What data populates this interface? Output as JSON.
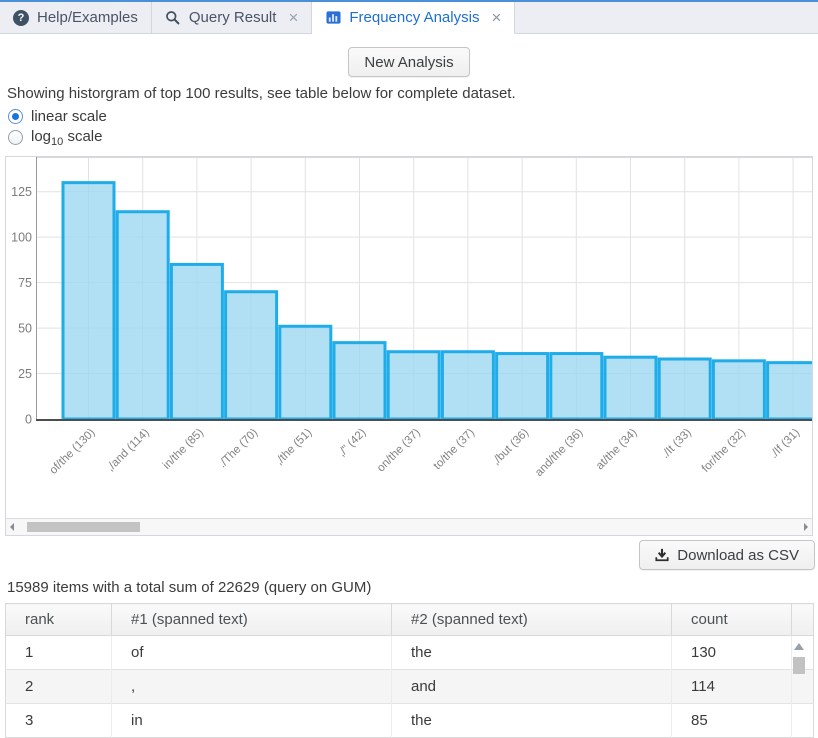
{
  "tabs": [
    {
      "label": "Help/Examples",
      "icon": "help-circle",
      "closable": false,
      "active": false
    },
    {
      "label": "Query Result",
      "icon": "magnifier",
      "closable": true,
      "active": false
    },
    {
      "label": "Frequency Analysis",
      "icon": "bar-chart",
      "closable": true,
      "active": true
    }
  ],
  "toolbar": {
    "new_analysis_label": "New Analysis"
  },
  "description": "Showing historgram of top 100 results, see table below for complete dataset.",
  "scales": {
    "linear_label": "linear scale",
    "log_pre": "log",
    "log_sub": "10",
    "log_post": " scale",
    "selected": "linear"
  },
  "chart_data": {
    "type": "bar",
    "categories": [
      "of/the",
      ",/and",
      "in/the",
      "./The",
      ",/the",
      ",/\"",
      "on/the",
      "to/the",
      ",/but",
      "and/the",
      "at/the",
      "./It",
      "for/the",
      "./If"
    ],
    "values": [
      130,
      114,
      85,
      70,
      51,
      42,
      37,
      37,
      36,
      36,
      34,
      33,
      32,
      31
    ],
    "xlabel_format": "{category} ({value})",
    "yticks": [
      0,
      25,
      50,
      75,
      100,
      125
    ],
    "ylim": [
      0,
      143
    ],
    "grid": true,
    "legend": "none",
    "bar_fill": "#9ed7f0",
    "bar_stroke": "#1fadea",
    "axis_color": "#4d4d4d",
    "grid_color": "#e2e2e2",
    "tick_color": "#7c7c7c"
  },
  "download": {
    "label": "Download as CSV"
  },
  "summary": "15989 items with a total sum of 22629 (query on GUM)",
  "table": {
    "columns": [
      "rank",
      "#1 (spanned text)",
      "#2 (spanned text)",
      "count"
    ],
    "rows": [
      [
        "1",
        "of",
        "the",
        "130"
      ],
      [
        "2",
        ",",
        "and",
        "114"
      ],
      [
        "3",
        "in",
        "the",
        "85"
      ]
    ]
  },
  "colors": {
    "accent_blue": "#1d6fd4",
    "tab_bar_bg": "#eceef3",
    "top_border": "#4a90d9",
    "radio_selected": "#1a73d9"
  }
}
